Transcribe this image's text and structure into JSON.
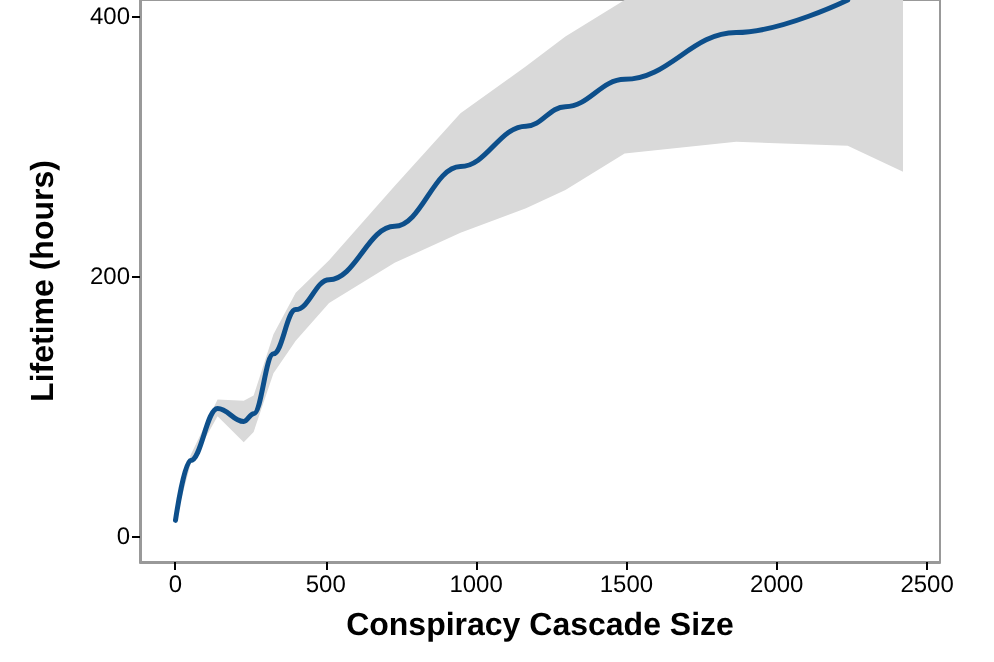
{
  "chart_data": {
    "type": "line",
    "xlabel": "Conspiracy Cascade Size",
    "ylabel": "Lifetime (hours)",
    "x": [
      0,
      50,
      140,
      227,
      260,
      326,
      400,
      511,
      729,
      948,
      1166,
      1297,
      1494,
      1865,
      2236,
      2420
    ],
    "series": [
      {
        "color": "#0d4f8b",
        "values": [
          12,
          58,
          98,
          88,
          94,
          140,
          174,
          197,
          238,
          284,
          315,
          330,
          351,
          387,
          412,
          null
        ],
        "lower": [
          12,
          55,
          92,
          72,
          80,
          125,
          150,
          179,
          210,
          233,
          252,
          266,
          294,
          303,
          300,
          280
        ],
        "upper": [
          12,
          62,
          105,
          104,
          108,
          155,
          187,
          212,
          269,
          325,
          361,
          384,
          412,
          412,
          412,
          412
        ]
      }
    ],
    "xlim": [
      -118,
      2543
    ],
    "xticks": [
      0,
      500,
      1000,
      1500,
      2000,
      2500
    ],
    "ylim": [
      -20,
      412
    ],
    "yticks": [
      0,
      200,
      400
    ],
    "grid": false,
    "marker": "none",
    "line_style": "solid"
  }
}
